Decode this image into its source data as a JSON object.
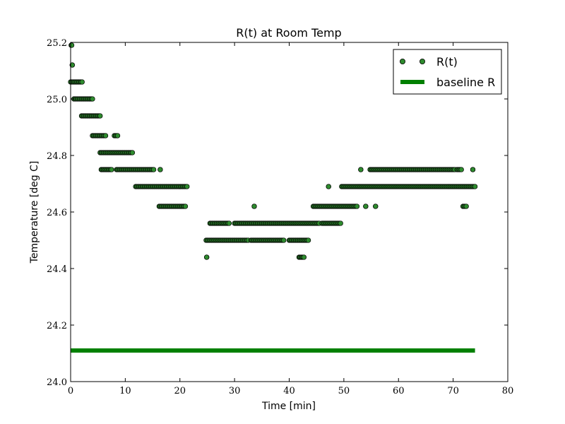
{
  "chart_data": {
    "type": "scatter",
    "title": "R(t) at Room Temp",
    "xlabel": "Time [min]",
    "ylabel": "Temperature [deg C]",
    "xlim": [
      0,
      80
    ],
    "ylim": [
      24.0,
      25.2
    ],
    "xticks": [
      "0",
      "10",
      "20",
      "30",
      "40",
      "50",
      "60",
      "70",
      "80"
    ],
    "yticks": [
      "24.0",
      "24.2",
      "24.4",
      "24.6",
      "24.8",
      "25.0",
      "25.2"
    ],
    "grid": false,
    "legend_position": "top-right",
    "colors": {
      "points": "#2e8b2e",
      "point_edge": "#000000",
      "baseline": "#008000"
    },
    "series": [
      {
        "name": "R(t)",
        "kind": "points",
        "segments": [
          {
            "y": 25.19,
            "x_start": 0.1,
            "x_end": 0.2
          },
          {
            "y": 25.12,
            "x_start": 0.3,
            "x_end": 0.3
          },
          {
            "y": 25.06,
            "x_start": 0.0,
            "x_end": 2.1
          },
          {
            "y": 25.0,
            "x_start": 0.6,
            "x_end": 4.0
          },
          {
            "y": 24.94,
            "x_start": 2.0,
            "x_end": 5.4
          },
          {
            "y": 24.87,
            "x_start": 4.0,
            "x_end": 6.4
          },
          {
            "y": 24.87,
            "x_start": 8.0,
            "x_end": 8.6
          },
          {
            "y": 24.81,
            "x_start": 5.4,
            "x_end": 11.3
          },
          {
            "y": 24.75,
            "x_start": 5.6,
            "x_end": 7.5
          },
          {
            "y": 24.75,
            "x_start": 8.4,
            "x_end": 15.2
          },
          {
            "y": 24.75,
            "x_start": 16.4,
            "x_end": 16.4
          },
          {
            "y": 24.69,
            "x_start": 11.9,
            "x_end": 21.3
          },
          {
            "y": 24.62,
            "x_start": 16.2,
            "x_end": 21.0
          },
          {
            "y": 24.56,
            "x_start": 25.5,
            "x_end": 29.0
          },
          {
            "y": 24.56,
            "x_start": 30.0,
            "x_end": 45.5
          },
          {
            "y": 24.56,
            "x_start": 46.0,
            "x_end": 49.4
          },
          {
            "y": 24.5,
            "x_start": 24.8,
            "x_end": 32.5
          },
          {
            "y": 24.5,
            "x_start": 33.0,
            "x_end": 39.0
          },
          {
            "y": 24.5,
            "x_start": 40.0,
            "x_end": 43.5
          },
          {
            "y": 24.62,
            "x_start": 33.6,
            "x_end": 33.6
          },
          {
            "y": 24.44,
            "x_start": 24.9,
            "x_end": 24.9
          },
          {
            "y": 24.44,
            "x_start": 41.8,
            "x_end": 42.7
          },
          {
            "y": 24.62,
            "x_start": 44.4,
            "x_end": 52.4
          },
          {
            "y": 24.62,
            "x_start": 54.0,
            "x_end": 54.0
          },
          {
            "y": 24.62,
            "x_start": 55.8,
            "x_end": 55.8
          },
          {
            "y": 24.62,
            "x_start": 71.8,
            "x_end": 72.4
          },
          {
            "y": 24.69,
            "x_start": 47.2,
            "x_end": 47.2
          },
          {
            "y": 24.69,
            "x_start": 49.6,
            "x_end": 74.0
          },
          {
            "y": 24.75,
            "x_start": 53.1,
            "x_end": 53.1
          },
          {
            "y": 24.75,
            "x_start": 54.8,
            "x_end": 70.3
          },
          {
            "y": 24.75,
            "x_start": 70.7,
            "x_end": 71.5
          },
          {
            "y": 24.75,
            "x_start": 73.6,
            "x_end": 73.6
          }
        ]
      },
      {
        "name": "baseline R",
        "kind": "line",
        "x": [
          0,
          74
        ],
        "y": [
          24.11,
          24.11
        ]
      }
    ]
  }
}
